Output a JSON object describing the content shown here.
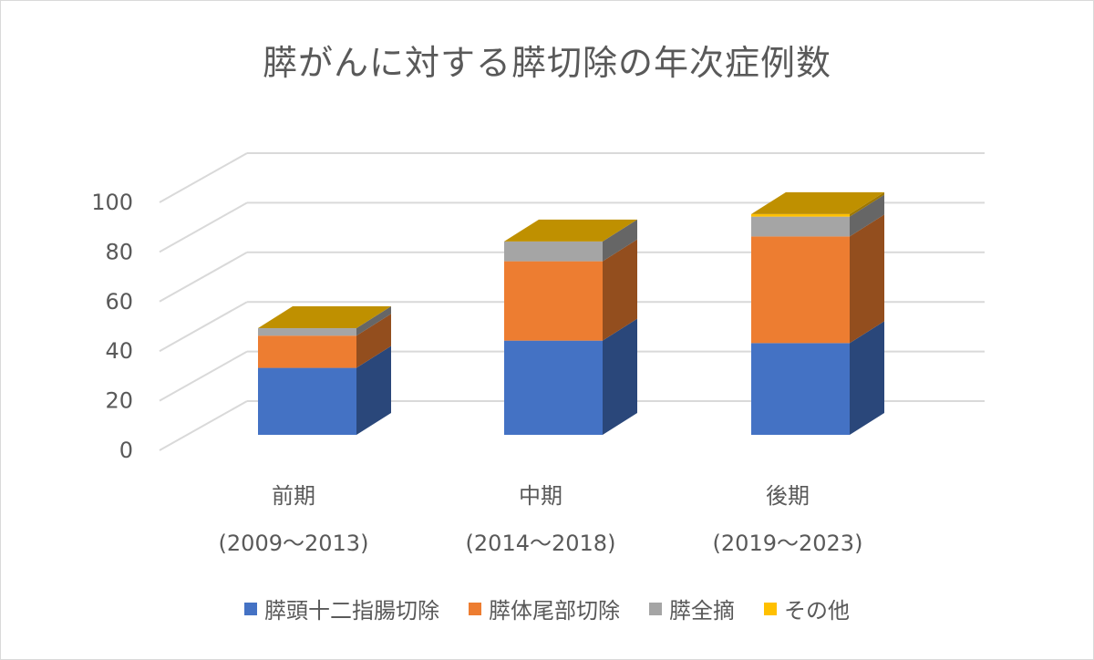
{
  "chart_data": {
    "type": "bar",
    "stacked": true,
    "three_d": true,
    "title": "膵がんに対する膵切除の年次症例数",
    "categories": [
      [
        "前期",
        "(2009～2013)"
      ],
      [
        "中期",
        "(2014～2018)"
      ],
      [
        "後期",
        "(2019～2023)"
      ]
    ],
    "series": [
      {
        "name": "膵頭十二指腸切除",
        "color": "#4472c4",
        "values": [
          27,
          38,
          37
        ]
      },
      {
        "name": "膵体尾部切除",
        "color": "#ed7d31",
        "values": [
          13,
          32,
          43
        ]
      },
      {
        "name": "膵全摘",
        "color": "#a5a5a5",
        "values": [
          3,
          8,
          8
        ]
      },
      {
        "name": "その他",
        "color": "#ffc000",
        "values": [
          0,
          0,
          1
        ]
      }
    ],
    "ylim": [
      0,
      100
    ],
    "yticks": [
      0,
      20,
      40,
      60,
      80,
      100
    ],
    "grid": true,
    "legend_position": "bottom"
  }
}
